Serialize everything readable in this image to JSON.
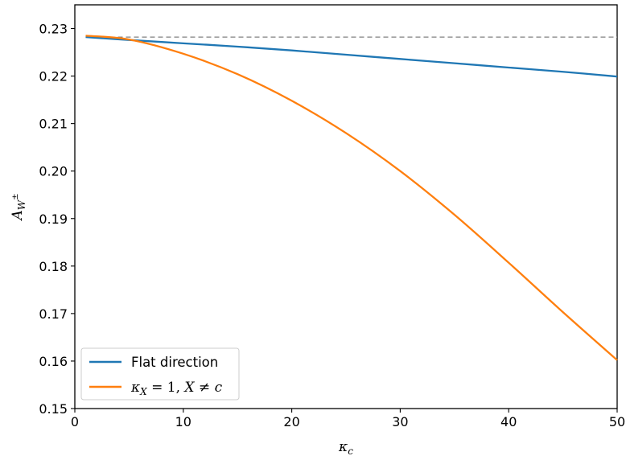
{
  "chart_data": {
    "type": "line",
    "xlim": [
      0,
      50
    ],
    "ylim": [
      0.15,
      0.235
    ],
    "x_ticks": [
      0,
      10,
      20,
      30,
      40,
      50
    ],
    "y_ticks": [
      0.15,
      0.16,
      0.17,
      0.18,
      0.19,
      0.2,
      0.21,
      0.22,
      0.23
    ],
    "x_tick_labels": [
      "0",
      "10",
      "20",
      "30",
      "40",
      "50"
    ],
    "y_tick_labels": [
      "0.15",
      "0.16",
      "0.17",
      "0.18",
      "0.19",
      "0.20",
      "0.21",
      "0.22",
      "0.23"
    ],
    "xlabel": {
      "base": "κ",
      "sub": "c"
    },
    "ylabel": {
      "base": "A",
      "sub": "W",
      "sup": "±"
    },
    "grid": false,
    "legend_position": "lower-left",
    "series": [
      {
        "name": "Flat direction",
        "color": "#1f77b4",
        "x": [
          1,
          5,
          10,
          15,
          20,
          25,
          30,
          35,
          40,
          45,
          50
        ],
        "y": [
          0.2282,
          0.2276,
          0.2269,
          0.2262,
          0.2254,
          0.2245,
          0.2236,
          0.2227,
          0.2218,
          0.2209,
          0.2199
        ]
      },
      {
        "name_parts": {
          "k": "κ",
          "k_sub": "X",
          "eq": " = 1, ",
          "X": "X",
          "neq": " ≠ ",
          "c": "c"
        },
        "color": "#ff7f0e",
        "x": [
          1,
          5,
          10,
          15,
          20,
          25,
          30,
          35,
          40,
          45,
          50
        ],
        "y": [
          0.2285,
          0.2277,
          0.2247,
          0.2204,
          0.2148,
          0.208,
          0.2,
          0.1908,
          0.1807,
          0.1703,
          0.1602
        ]
      }
    ],
    "reference_lines": [
      {
        "type": "horizontal",
        "y": 0.2282,
        "style": "dashed",
        "color": "#808080"
      }
    ]
  }
}
